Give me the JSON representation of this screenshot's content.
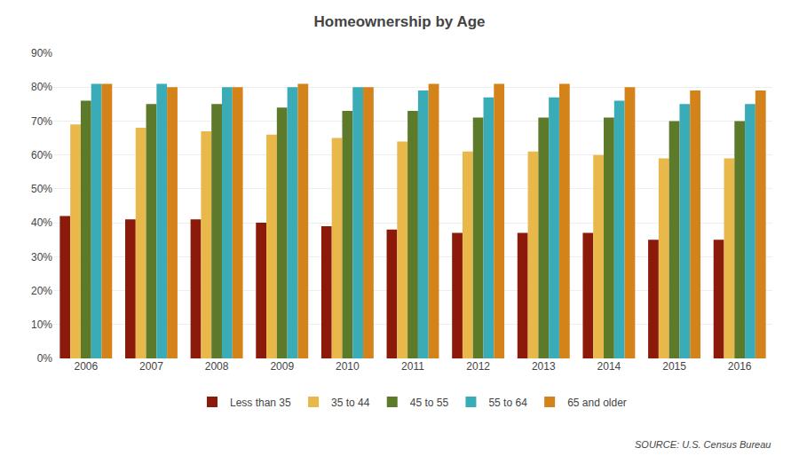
{
  "chart_data": {
    "type": "bar",
    "title": "Homeownership by Age",
    "categories": [
      "2006",
      "2007",
      "2008",
      "2009",
      "2010",
      "2011",
      "2012",
      "2013",
      "2014",
      "2015",
      "2016"
    ],
    "series": [
      {
        "name": "Less than 35",
        "color": "#8B1A0A",
        "values": [
          42,
          41,
          41,
          40,
          39,
          38,
          37,
          37,
          37,
          35,
          35
        ]
      },
      {
        "name": "35 to 44",
        "color": "#E8B84B",
        "values": [
          69,
          68,
          67,
          66,
          65,
          64,
          61,
          61,
          60,
          59,
          59
        ]
      },
      {
        "name": "45 to 55",
        "color": "#5C7A2A",
        "values": [
          76,
          75,
          75,
          74,
          73,
          73,
          71,
          71,
          71,
          70,
          70
        ]
      },
      {
        "name": "55 to 64",
        "color": "#3AACB8",
        "values": [
          81,
          81,
          80,
          80,
          80,
          79,
          77,
          77,
          76,
          75,
          75
        ]
      },
      {
        "name": "65 and older",
        "color": "#D4821A",
        "values": [
          81,
          80,
          80,
          81,
          80,
          81,
          81,
          81,
          80,
          79,
          79
        ]
      }
    ],
    "ylim": [
      0,
      90
    ],
    "yticks": [
      {
        "value": 0,
        "label": "0%"
      },
      {
        "value": 10,
        "label": "10%"
      },
      {
        "value": 20,
        "label": "20%"
      },
      {
        "value": 30,
        "label": "30%"
      },
      {
        "value": 40,
        "label": "40%"
      },
      {
        "value": 50,
        "label": "50%"
      },
      {
        "value": 60,
        "label": "60%"
      },
      {
        "value": 70,
        "label": "70%"
      },
      {
        "value": 80,
        "label": "80%"
      },
      {
        "value": 90,
        "label": "90%"
      }
    ],
    "grid": true,
    "legend": "bottom",
    "annotations": [
      "SOURCE: U.S. Census Bureau"
    ]
  }
}
